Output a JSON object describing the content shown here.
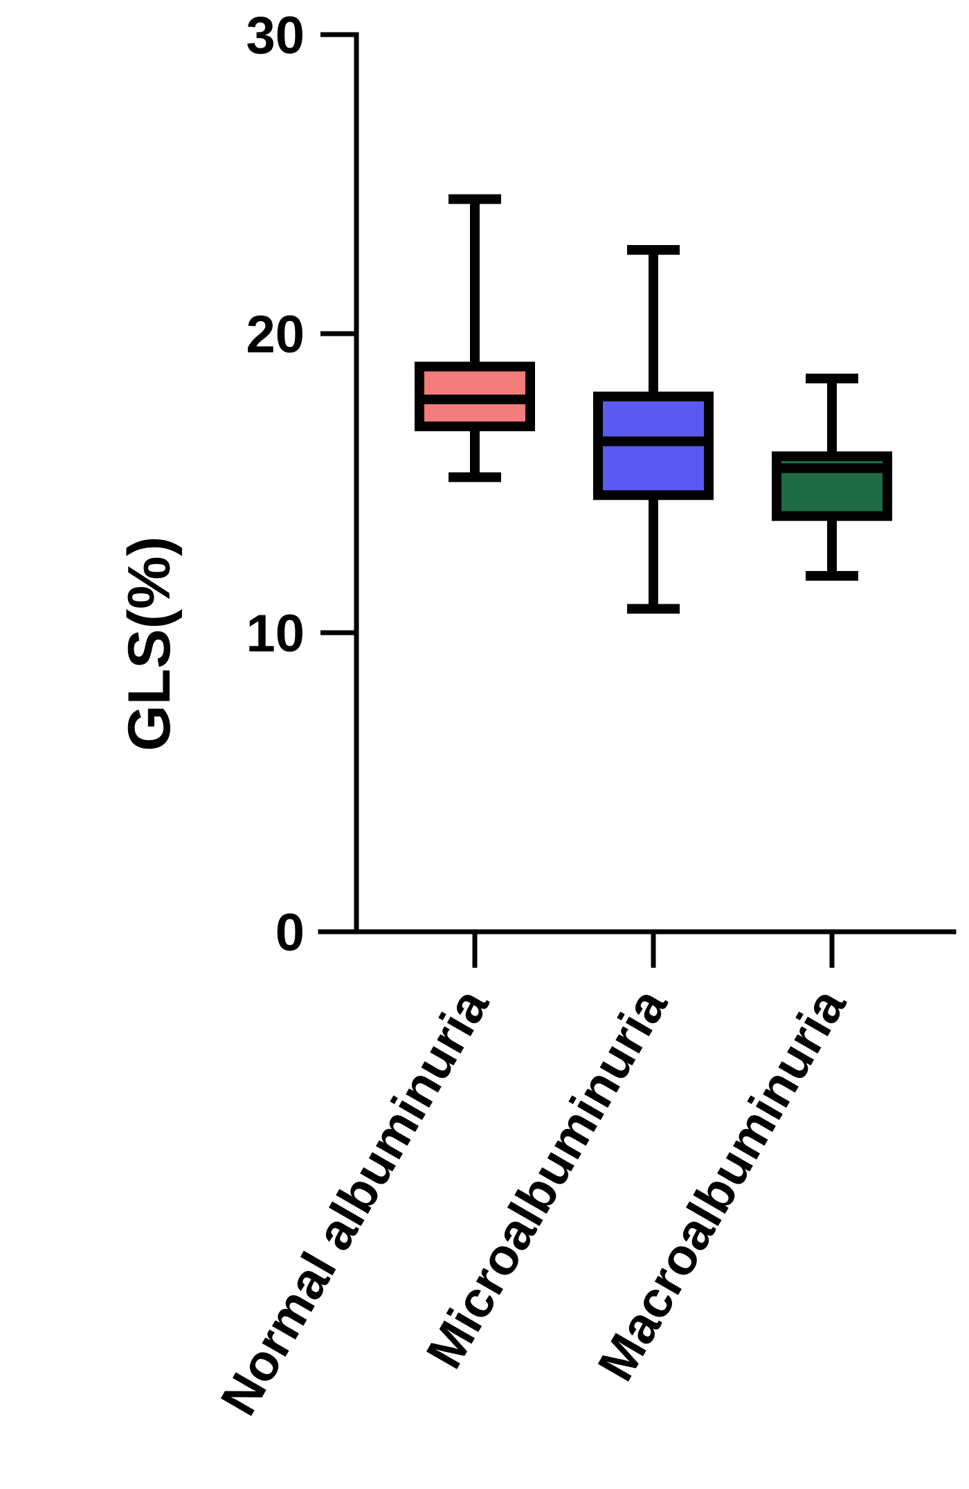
{
  "chart_data": {
    "type": "box",
    "ylabel": "GLS(%)",
    "xlabel": "",
    "ylim": [
      0,
      30
    ],
    "yticks": [
      "0",
      "10",
      "20",
      "30"
    ],
    "grid": false,
    "legend": "none",
    "categories": [
      "Normal albuminuria",
      "Microalbuminuria",
      "Macroalbuminuria"
    ],
    "series": [
      {
        "category": "Normal albuminuria",
        "min": 15.2,
        "q1": 16.9,
        "median": 17.8,
        "q3": 18.9,
        "max": 24.5,
        "color": "#f47c7c"
      },
      {
        "category": "Microalbuminuria",
        "min": 10.8,
        "q1": 14.6,
        "median": 16.4,
        "q3": 17.9,
        "max": 22.8,
        "color": "#5a5af0"
      },
      {
        "category": "Macroalbuminuria",
        "min": 11.9,
        "q1": 13.9,
        "median": 15.5,
        "q3": 15.9,
        "max": 18.5,
        "color": "#1e6b45"
      }
    ]
  }
}
